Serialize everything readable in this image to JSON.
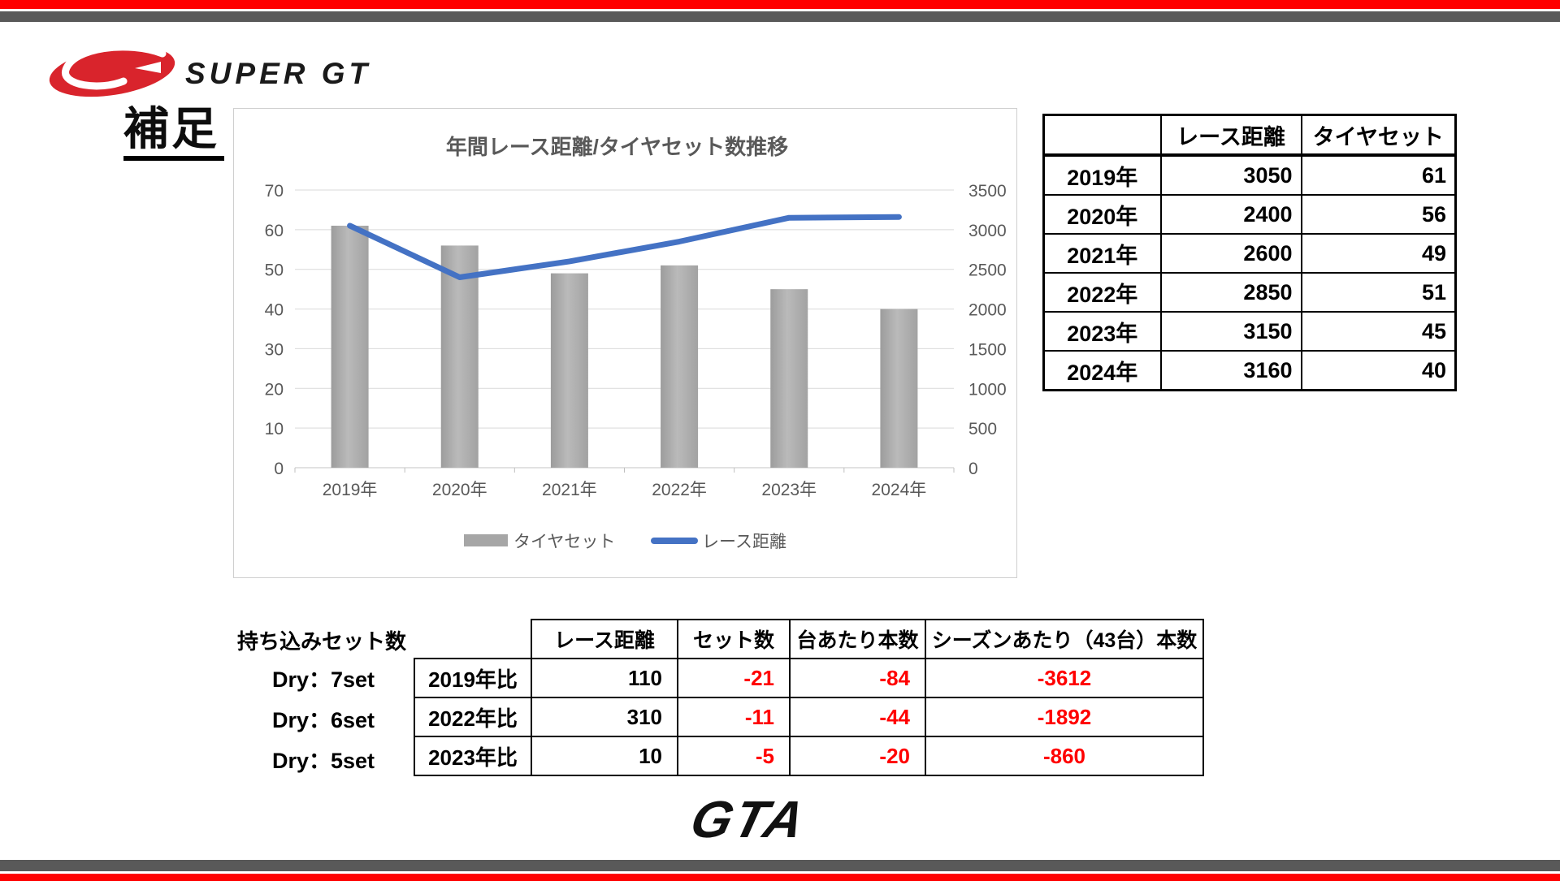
{
  "colors": {
    "accent_red": "#fe0000",
    "stripe_gray": "#595959",
    "negative": "#ff0000"
  },
  "header": {
    "brand": "SUPER GT",
    "page_label": "補足"
  },
  "chart_data": {
    "type": "bar+line",
    "title": "年間レース距離/タイヤセット数推移",
    "categories": [
      "2019年",
      "2020年",
      "2021年",
      "2022年",
      "2023年",
      "2024年"
    ],
    "series": [
      {
        "name": "タイヤセット",
        "type": "bar",
        "axis": "left",
        "values": [
          61,
          56,
          49,
          51,
          45,
          40
        ],
        "color": "#a6a6a6"
      },
      {
        "name": "レース距離",
        "type": "line",
        "axis": "right",
        "values": [
          3050,
          2400,
          2600,
          2850,
          3150,
          3160
        ],
        "color": "#4472c4"
      }
    ],
    "left_axis": {
      "min": 0,
      "max": 70,
      "step": 10,
      "ticks": [
        "0",
        "10",
        "20",
        "30",
        "40",
        "50",
        "60",
        "70"
      ]
    },
    "right_axis": {
      "min": 0,
      "max": 3500,
      "step": 500,
      "ticks": [
        "0",
        "500",
        "1000",
        "1500",
        "2000",
        "2500",
        "3000",
        "3500"
      ]
    },
    "grid": true,
    "legend_position": "bottom",
    "text_color": "#595959",
    "grid_color": "#d9d9d9"
  },
  "yearly_table": {
    "headers": [
      "",
      "レース距離",
      "タイヤセット"
    ],
    "rows": [
      {
        "year": "2019年",
        "distance": "3050",
        "sets": "61"
      },
      {
        "year": "2020年",
        "distance": "2400",
        "sets": "56"
      },
      {
        "year": "2021年",
        "distance": "2600",
        "sets": "49"
      },
      {
        "year": "2022年",
        "distance": "2850",
        "sets": "51"
      },
      {
        "year": "2023年",
        "distance": "3150",
        "sets": "45"
      },
      {
        "year": "2024年",
        "distance": "3160",
        "sets": "40"
      }
    ]
  },
  "comparison": {
    "side_label": "持ち込みセット数",
    "side_items": [
      "Dry：7set",
      "Dry：6set",
      "Dry：5set"
    ],
    "headers": [
      "レース距離",
      "セット数",
      "台あたり本数",
      "シーズンあたり（43台）本数"
    ],
    "rows": [
      {
        "base": "2019年比",
        "distance": "110",
        "sets": "-21",
        "per_car": "-84",
        "per_season": "-3612"
      },
      {
        "base": "2022年比",
        "distance": "310",
        "sets": "-11",
        "per_car": "-44",
        "per_season": "-1892"
      },
      {
        "base": "2023年比",
        "distance": "10",
        "sets": "-5",
        "per_car": "-20",
        "per_season": "-860"
      }
    ]
  },
  "footer": {
    "logo_text": "GTA"
  }
}
